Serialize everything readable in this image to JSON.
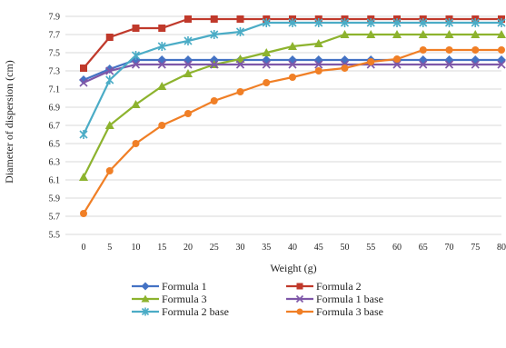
{
  "chart_data": {
    "type": "line",
    "title": "",
    "xlabel": "Weight (g)",
    "ylabel": "Diameter of dispersion (cm)",
    "x": [
      0,
      5,
      10,
      15,
      20,
      25,
      30,
      35,
      40,
      45,
      50,
      55,
      60,
      65,
      70,
      75,
      80
    ],
    "ylim": [
      5.5,
      7.9
    ],
    "yticks": [
      5.5,
      5.7,
      5.9,
      6.1,
      6.3,
      6.5,
      6.7,
      6.9,
      7.1,
      7.3,
      7.5,
      7.7,
      7.9
    ],
    "grid": "horizontal",
    "legend_position": "bottom",
    "series": [
      {
        "name": "Formula 1",
        "color": "#4472C4",
        "marker": "diamond",
        "values": [
          7.2,
          7.32,
          7.42,
          7.42,
          7.42,
          7.42,
          7.42,
          7.42,
          7.42,
          7.42,
          7.42,
          7.42,
          7.42,
          7.42,
          7.42,
          7.42,
          7.42
        ]
      },
      {
        "name": "Formula 2",
        "color": "#C0392B",
        "marker": "square",
        "values": [
          7.33,
          7.67,
          7.77,
          7.77,
          7.87,
          7.87,
          7.87,
          7.87,
          7.87,
          7.87,
          7.87,
          7.87,
          7.87,
          7.87,
          7.87,
          7.87,
          7.87
        ]
      },
      {
        "name": "Formula 3",
        "color": "#8DB32E",
        "marker": "triangle",
        "values": [
          6.13,
          6.7,
          6.93,
          7.13,
          7.27,
          7.37,
          7.43,
          7.5,
          7.57,
          7.6,
          7.7,
          7.7,
          7.7,
          7.7,
          7.7,
          7.7,
          7.7
        ]
      },
      {
        "name": "Formula 1 base",
        "color": "#7E57A8",
        "marker": "x",
        "values": [
          7.17,
          7.3,
          7.37,
          7.37,
          7.37,
          7.37,
          7.37,
          7.37,
          7.37,
          7.37,
          7.37,
          7.37,
          7.37,
          7.37,
          7.37,
          7.37,
          7.37
        ]
      },
      {
        "name": "Formula 2 base",
        "color": "#4BACC6",
        "marker": "star",
        "values": [
          6.6,
          7.2,
          7.47,
          7.57,
          7.63,
          7.7,
          7.73,
          7.83,
          7.83,
          7.83,
          7.83,
          7.83,
          7.83,
          7.83,
          7.83,
          7.83,
          7.83
        ]
      },
      {
        "name": "Formula 3 base",
        "color": "#F07F26",
        "marker": "circle",
        "values": [
          5.73,
          6.2,
          6.5,
          6.7,
          6.83,
          6.97,
          7.07,
          7.17,
          7.23,
          7.3,
          7.33,
          7.4,
          7.43,
          7.53,
          7.53,
          7.53,
          7.53
        ]
      }
    ]
  }
}
